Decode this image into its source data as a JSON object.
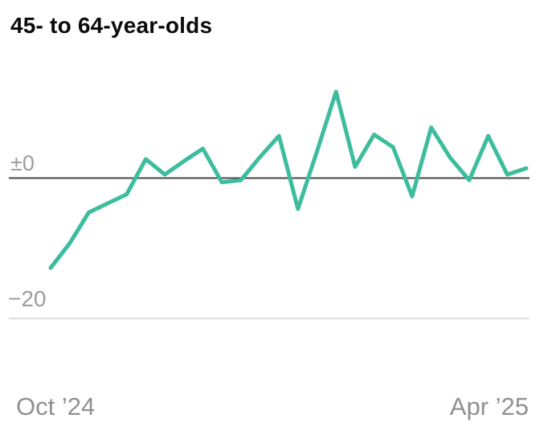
{
  "header": {
    "title": "45- to 64-year-olds"
  },
  "chart_data": {
    "type": "line",
    "title": "45- to 64-year-olds",
    "x_axis": {
      "start_label": "Oct ’24",
      "end_label": "Apr ’25",
      "note": "weekly points from Oct 2024 to Apr 2025"
    },
    "y_axis": {
      "ticks": [
        {
          "label": "±0",
          "value": 0,
          "line_color": "#474747",
          "line_width": 2
        },
        {
          "label": "−20",
          "value": -20,
          "line_color": "#dedede",
          "line_width": 2
        }
      ],
      "visible_range": [
        -25,
        14
      ]
    },
    "series": [
      {
        "name": "45- to 64-year-olds",
        "color": "#3dbd9e",
        "values": [
          -12.8,
          -9.3,
          -4.9,
          -3.6,
          -2.3,
          2.7,
          0.5,
          2.4,
          4.2,
          -0.6,
          -0.3,
          3.0,
          6.0,
          -4.4,
          3.8,
          12.3,
          1.6,
          6.2,
          4.4,
          -2.6,
          7.2,
          2.9,
          -0.3,
          6.0,
          0.5,
          1.4
        ]
      }
    ],
    "grid": {
      "horizontal": true,
      "vertical": false
    },
    "legend_position": "none"
  },
  "colors": {
    "line": "#3dbd9e",
    "zero_line": "#474747",
    "baseline_grid": "#dedede",
    "tick_label": "#9c9c9c",
    "date_label": "#909090",
    "title": "#0b0b0b",
    "background": "#ffffff"
  }
}
